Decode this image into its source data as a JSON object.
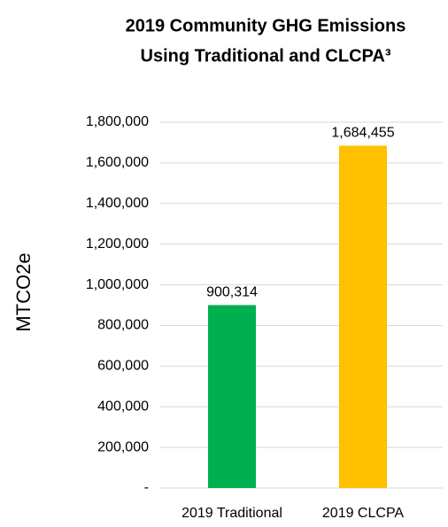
{
  "chart_data": {
    "type": "bar",
    "title": [
      "2019 Community GHG Emissions",
      "Using Traditional and CLCPA³"
    ],
    "y_label": "MTCO2e",
    "categories": [
      "2019 Traditional",
      "2019 CLCPA"
    ],
    "values": [
      900314,
      1684455
    ],
    "value_labels": [
      "900,314",
      "1,684,455"
    ],
    "colors": [
      "#00b050",
      "#ffc000"
    ],
    "ylim": [
      0,
      1800000
    ],
    "yticks": [
      {
        "value": 0,
        "label": "-"
      },
      {
        "value": 200000,
        "label": "200,000"
      },
      {
        "value": 400000,
        "label": "400,000"
      },
      {
        "value": 600000,
        "label": "600,000"
      },
      {
        "value": 800000,
        "label": "800,000"
      },
      {
        "value": 1000000,
        "label": "1,000,000"
      },
      {
        "value": 1200000,
        "label": "1,200,000"
      },
      {
        "value": 1400000,
        "label": "1,400,000"
      },
      {
        "value": 1600000,
        "label": "1,600,000"
      },
      {
        "value": 1800000,
        "label": "1,800,000"
      }
    ],
    "grid": true
  }
}
